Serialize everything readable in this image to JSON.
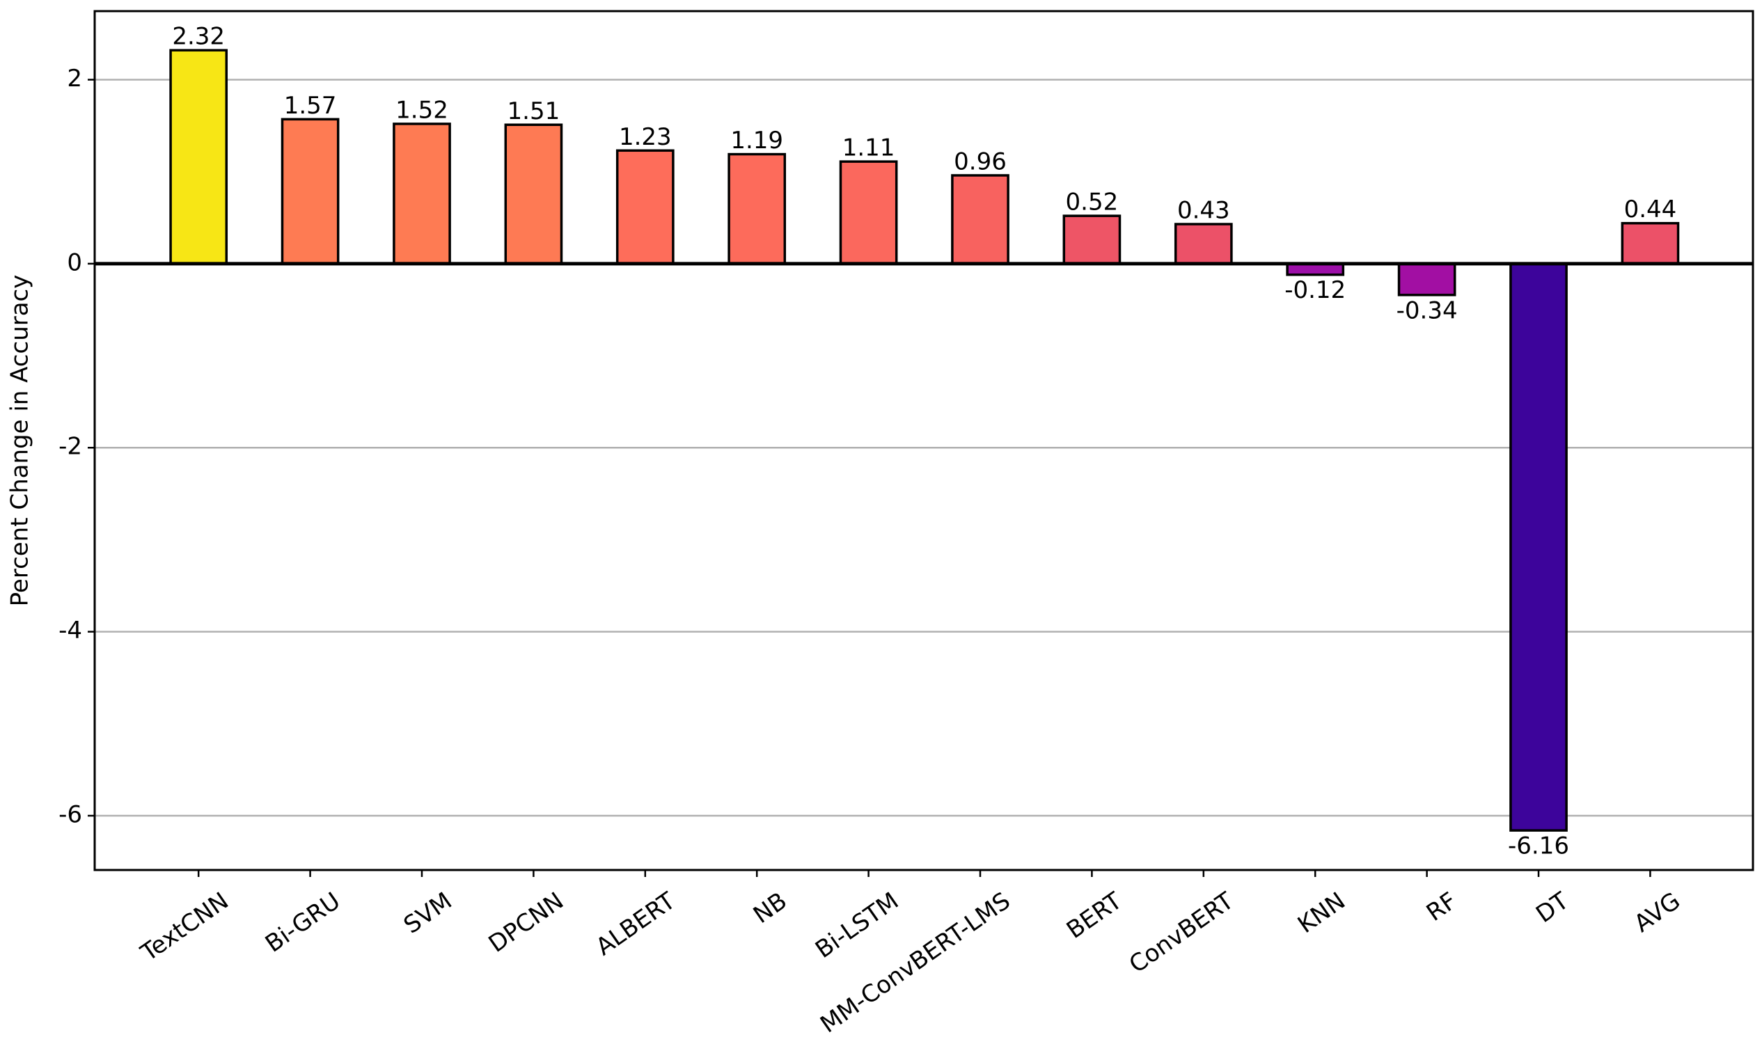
{
  "chart_data": {
    "type": "bar",
    "y_label": "Percent Change in Accuracy",
    "categories": [
      "TextCNN",
      "Bi-GRU",
      "SVM",
      "DPCNN",
      "ALBERT",
      "NB",
      "Bi-LSTM",
      "MM-ConvBERT-LMS",
      "BERT",
      "ConvBERT",
      "KNN",
      "RF",
      "DT",
      "AVG"
    ],
    "values": [
      2.32,
      1.57,
      1.52,
      1.51,
      1.23,
      1.19,
      1.11,
      0.96,
      0.52,
      0.43,
      -0.12,
      -0.34,
      -6.16,
      0.44
    ],
    "colors": [
      "#f7e615",
      "#fe7b53",
      "#fe7b53",
      "#fe7a54",
      "#fe6d5a",
      "#fd6b5b",
      "#fb685d",
      "#f8625f",
      "#ee5566",
      "#ec5168",
      "#9c0fa8",
      "#a20fa3",
      "#3d049b",
      "#ec5168"
    ],
    "ylim": [
      -6.59,
      2.745
    ],
    "yticks": [
      -6,
      -4,
      -2,
      0,
      2
    ],
    "grid": true
  }
}
